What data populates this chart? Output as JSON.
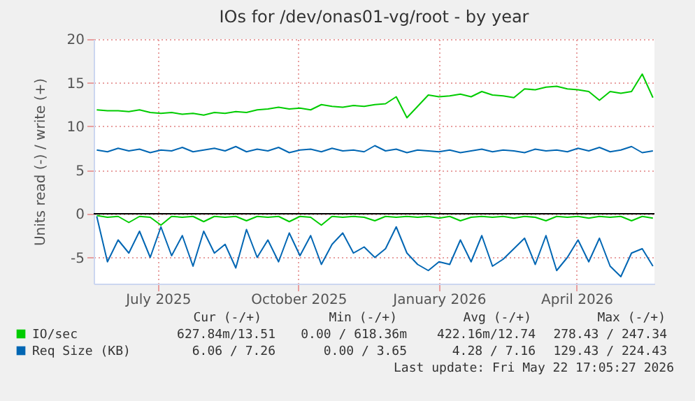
{
  "chart_data": {
    "type": "line",
    "title": "IOs for /dev/onas01-vg/root - by year",
    "ylabel": "Units read (-) / write (+)",
    "x": [
      "2025-05-22",
      "2025-05-29",
      "2025-06-05",
      "2025-06-12",
      "2025-06-19",
      "2025-06-26",
      "2025-07-03",
      "2025-07-10",
      "2025-07-17",
      "2025-07-24",
      "2025-07-31",
      "2025-08-07",
      "2025-08-14",
      "2025-08-21",
      "2025-08-28",
      "2025-09-04",
      "2025-09-11",
      "2025-09-18",
      "2025-09-25",
      "2025-10-02",
      "2025-10-09",
      "2025-10-16",
      "2025-10-23",
      "2025-10-30",
      "2025-11-06",
      "2025-11-13",
      "2025-11-20",
      "2025-11-27",
      "2025-12-04",
      "2025-12-11",
      "2025-12-18",
      "2025-12-25",
      "2026-01-01",
      "2026-01-08",
      "2026-01-15",
      "2026-01-22",
      "2026-01-29",
      "2026-02-05",
      "2026-02-12",
      "2026-02-19",
      "2026-02-26",
      "2026-03-05",
      "2026-03-12",
      "2026-03-19",
      "2026-03-26",
      "2026-04-02",
      "2026-04-09",
      "2026-04-16",
      "2026-04-23",
      "2026-04-30",
      "2026-05-07",
      "2026-05-14",
      "2026-05-21"
    ],
    "series": [
      {
        "name": "IO/sec",
        "color": "#00cc00",
        "values": [
          11.9,
          11.8,
          11.8,
          11.7,
          11.9,
          11.6,
          11.5,
          11.6,
          11.4,
          11.5,
          11.3,
          11.6,
          11.5,
          11.7,
          11.6,
          11.9,
          12.0,
          12.2,
          12.0,
          12.1,
          11.9,
          12.5,
          12.3,
          12.2,
          12.4,
          12.3,
          12.5,
          12.6,
          13.4,
          11.0,
          12.3,
          13.6,
          13.4,
          13.5,
          13.7,
          13.4,
          14.0,
          13.6,
          13.5,
          13.3,
          14.3,
          14.2,
          14.5,
          14.6,
          14.3,
          14.2,
          14.0,
          13.0,
          14.0,
          13.8,
          14.0,
          16.0,
          13.3
        ]
      },
      {
        "color": "#00cc00",
        "values": [
          -0.2,
          -0.4,
          -0.3,
          -1.0,
          -0.3,
          -0.4,
          -1.3,
          -0.3,
          -0.4,
          -0.3,
          -0.9,
          -0.3,
          -0.4,
          -0.3,
          -0.8,
          -0.3,
          -0.4,
          -0.3,
          -0.9,
          -0.3,
          -0.4,
          -1.3,
          -0.3,
          -0.4,
          -0.3,
          -0.4,
          -0.8,
          -0.3,
          -0.4,
          -0.3,
          -0.4,
          -0.3,
          -0.5,
          -0.3,
          -0.8,
          -0.4,
          -0.3,
          -0.4,
          -0.3,
          -0.5,
          -0.3,
          -0.4,
          -0.8,
          -0.3,
          -0.4,
          -0.3,
          -0.5,
          -0.3,
          -0.4,
          -0.3,
          -0.8,
          -0.3,
          -0.5
        ]
      },
      {
        "name": "Req Size (KB)",
        "color": "#0066b3",
        "values": [
          7.3,
          7.1,
          7.5,
          7.2,
          7.4,
          7.0,
          7.3,
          7.2,
          7.6,
          7.1,
          7.3,
          7.5,
          7.2,
          7.7,
          7.1,
          7.4,
          7.2,
          7.6,
          7.0,
          7.3,
          7.4,
          7.1,
          7.5,
          7.2,
          7.3,
          7.1,
          7.8,
          7.2,
          7.4,
          7.0,
          7.3,
          7.2,
          7.1,
          7.3,
          7.0,
          7.2,
          7.4,
          7.1,
          7.3,
          7.2,
          7.0,
          7.4,
          7.2,
          7.3,
          7.1,
          7.5,
          7.2,
          7.6,
          7.1,
          7.3,
          7.7,
          7.0,
          7.2
        ]
      },
      {
        "color": "#0066b3",
        "values": [
          -0.3,
          -5.5,
          -3.0,
          -4.5,
          -2.0,
          -5.0,
          -1.5,
          -4.8,
          -2.5,
          -6.0,
          -2.0,
          -4.5,
          -3.5,
          -6.2,
          -1.8,
          -5.0,
          -3.0,
          -5.5,
          -2.2,
          -4.8,
          -2.5,
          -5.8,
          -3.5,
          -2.2,
          -4.5,
          -3.8,
          -5.0,
          -4.0,
          -1.5,
          -4.5,
          -5.8,
          -6.5,
          -5.5,
          -5.8,
          -3.0,
          -5.5,
          -2.5,
          -6.0,
          -5.2,
          -4.0,
          -2.8,
          -5.8,
          -2.5,
          -6.5,
          -5.0,
          -3.0,
          -5.5,
          -2.8,
          -6.0,
          -7.2,
          -4.5,
          -4.0,
          -6.0
        ]
      }
    ],
    "xlim": [
      "2025-05-20",
      "2026-05-22"
    ],
    "xticks": [
      {
        "value": "2025-07-01",
        "label": "July 2025"
      },
      {
        "value": "2025-10-01",
        "label": "October 2025"
      },
      {
        "value": "2026-01-01",
        "label": "January 2026"
      },
      {
        "value": "2026-04-01",
        "label": "April 2026"
      }
    ],
    "ylim": [
      -8,
      20
    ],
    "yticks": [
      -5,
      0,
      5,
      10,
      15,
      20
    ],
    "ref_lines": [
      {
        "axis": "y",
        "value": 0,
        "color": "#000000"
      }
    ],
    "grid": true,
    "legend": "bottom",
    "marker": "none",
    "line_style": "solid",
    "annotations": [
      "Cur (-/+)",
      "Min (-/+)",
      "Avg (-/+)",
      "Max (-/+)",
      "627.84m/13.51",
      "0.00 / 618.36m",
      "422.16m/12.74",
      "278.43 / 247.34",
      "6.06 / 7.26",
      "0.00 / 3.65",
      "4.28 / 7.16",
      "129.43 / 224.43",
      "Last update: Fri May 22 17:05:27 2026"
    ]
  }
}
